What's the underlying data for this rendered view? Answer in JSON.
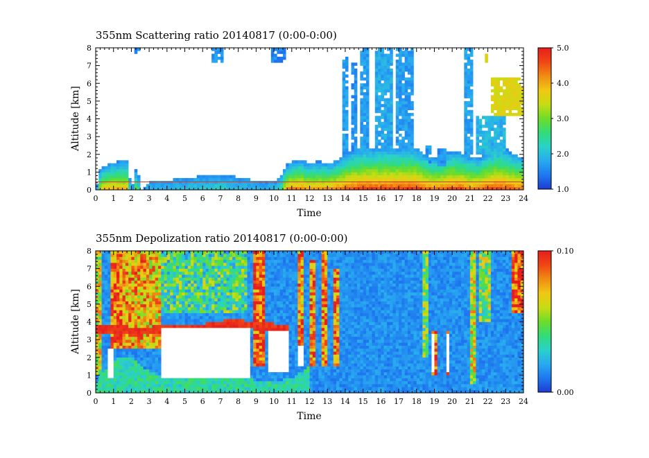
{
  "colorscale": {
    "stops": [
      "#1e3cd2",
      "#1e78f0",
      "#28aaf0",
      "#2ad2c8",
      "#32dc78",
      "#6edc28",
      "#c8dc14",
      "#f0c814",
      "#f08c14",
      "#f04614",
      "#e61e1e"
    ]
  },
  "chart_data": [
    {
      "type": "heatmap",
      "title": "355nm Scattering ratio  20140817 (0:00-0:00)",
      "xlabel": "Time",
      "ylabel": "Altitude [km]",
      "xlim": [
        0,
        24
      ],
      "ylim": [
        0,
        8
      ],
      "xticks": [
        "0",
        "1",
        "2",
        "3",
        "4",
        "5",
        "6",
        "7",
        "8",
        "9",
        "10",
        "11",
        "12",
        "13",
        "14",
        "15",
        "16",
        "17",
        "18",
        "19",
        "20",
        "21",
        "22",
        "23",
        "24"
      ],
      "yticks": [
        "0",
        "1",
        "2",
        "3",
        "4",
        "5",
        "6",
        "7",
        "8"
      ],
      "colorbar": {
        "range": [
          1.0,
          5.0
        ],
        "ticks": [
          "1.0",
          "2.0",
          "3.0",
          "4.0",
          "5.0"
        ]
      },
      "grid": false,
      "surface_line_km": 0.45,
      "profile_x": [
        0,
        0.3,
        0.8,
        1.3,
        1.8,
        2.0,
        2.3,
        2.6,
        3.0,
        4.0,
        5.0,
        6.0,
        7.0,
        8.0,
        9.0,
        9.5,
        10.0,
        10.3,
        10.7,
        11.0,
        11.5,
        12.0,
        12.5,
        13.0,
        13.5,
        14.0,
        14.5,
        15.0,
        15.5,
        16.0,
        16.5,
        17.0,
        17.5,
        18.0,
        18.5,
        19.0,
        19.5,
        20.0,
        20.5,
        21.0,
        21.5,
        22.0,
        22.5,
        23.0,
        23.5,
        24.0
      ],
      "profile_top_km": [
        0,
        1.3,
        1.5,
        1.6,
        1.6,
        0,
        1.3,
        0,
        0.45,
        0.55,
        0.65,
        0.8,
        0.9,
        0.7,
        0.5,
        0.45,
        0.5,
        0.7,
        1.4,
        1.6,
        1.7,
        1.5,
        1.6,
        1.5,
        1.6,
        2.0,
        2.3,
        2.4,
        2.4,
        2.4,
        2.4,
        2.4,
        2.4,
        2.4,
        2.0,
        1.8,
        2.0,
        2.2,
        2.1,
        1.9,
        1.8,
        2.2,
        2.4,
        2.3,
        2.0,
        1.8
      ],
      "profile_peak_sr": [
        1.0,
        4.0,
        4.2,
        4.3,
        4.2,
        1.0,
        3.5,
        1.0,
        2.0,
        2.0,
        2.2,
        2.2,
        2.3,
        2.1,
        2.0,
        2.0,
        2.0,
        2.2,
        4.5,
        4.6,
        4.6,
        4.4,
        4.5,
        4.5,
        4.7,
        4.8,
        4.9,
        5.0,
        5.0,
        5.0,
        5.0,
        5.0,
        5.0,
        5.0,
        4.8,
        4.7,
        4.8,
        4.9,
        4.9,
        4.6,
        4.7,
        4.9,
        5.0,
        4.9,
        4.8,
        4.7
      ],
      "upper_plumes": [
        {
          "x": [
            2.1,
            2.5
          ],
          "ylim": [
            7.6,
            8.0
          ],
          "sr": 1.5
        },
        {
          "x": [
            6.5,
            7.2
          ],
          "ylim": [
            7.1,
            8.0
          ],
          "sr": 1.6
        },
        {
          "x": [
            9.9,
            10.6
          ],
          "ylim": [
            7.2,
            8.0
          ],
          "sr": 1.5
        },
        {
          "x": [
            13.8,
            14.1
          ],
          "ylim": [
            2.0,
            7.5
          ],
          "sr": 1.7
        },
        {
          "x": [
            14.4,
            14.7
          ],
          "ylim": [
            2.2,
            7.2
          ],
          "sr": 1.6
        },
        {
          "x": [
            14.9,
            15.4
          ],
          "ylim": [
            2.0,
            8.0
          ],
          "sr": 1.7
        },
        {
          "x": [
            15.7,
            16.6
          ],
          "ylim": [
            2.2,
            8.0
          ],
          "sr": 1.8
        },
        {
          "x": [
            16.8,
            17.9
          ],
          "ylim": [
            2.3,
            8.0
          ],
          "sr": 1.7
        },
        {
          "x": [
            18.5,
            18.8
          ],
          "ylim": [
            1.5,
            2.5
          ],
          "sr": 1.6
        },
        {
          "x": [
            19.2,
            19.6
          ],
          "ylim": [
            1.3,
            2.3
          ],
          "sr": 1.6
        },
        {
          "x": [
            20.7,
            21.1
          ],
          "ylim": [
            2.0,
            8.0
          ],
          "sr": 1.7
        },
        {
          "x": [
            21.4,
            23.0
          ],
          "ylim": [
            2.0,
            4.2
          ],
          "sr": 1.9
        },
        {
          "x": [
            22.1,
            24.0
          ],
          "ylim": [
            4.2,
            6.3
          ],
          "sr": 3.6
        },
        {
          "x": [
            21.8,
            22.0
          ],
          "ylim": [
            7.2,
            7.6
          ],
          "sr": 3.5
        }
      ]
    },
    {
      "type": "heatmap",
      "title": "355nm Depolization ratio  20140817 (0:00-0:00)",
      "xlabel": "Time",
      "ylabel": "Altitude [km]",
      "xlim": [
        0,
        24
      ],
      "ylim": [
        0,
        8
      ],
      "xticks": [
        "0",
        "1",
        "2",
        "3",
        "4",
        "5",
        "6",
        "7",
        "8",
        "9",
        "10",
        "11",
        "12",
        "13",
        "14",
        "15",
        "16",
        "17",
        "18",
        "19",
        "20",
        "21",
        "22",
        "23",
        "24"
      ],
      "yticks": [
        "0",
        "1",
        "2",
        "3",
        "4",
        "5",
        "6",
        "7",
        "8"
      ],
      "colorbar": {
        "range": [
          0.0,
          0.1
        ],
        "ticks": [
          "0.00",
          "0.10"
        ]
      },
      "grid": false,
      "background_dr": 0.015,
      "noisy_columns": [
        {
          "x": [
            0.0,
            0.4
          ],
          "ylim": [
            1.0,
            8.0
          ],
          "dr": 0.06
        },
        {
          "x": [
            0.8,
            1.5
          ],
          "ylim": [
            2.5,
            8.0
          ],
          "dr": 0.085
        },
        {
          "x": [
            1.5,
            2.8
          ],
          "ylim": [
            2.5,
            8.0
          ],
          "dr": 0.075
        },
        {
          "x": [
            2.8,
            3.7
          ],
          "ylim": [
            2.5,
            8.0
          ],
          "dr": 0.07
        },
        {
          "x": [
            3.7,
            8.5
          ],
          "ylim": [
            4.5,
            8.0
          ],
          "dr": 0.04
        },
        {
          "x": [
            8.9,
            9.5
          ],
          "ylim": [
            1.5,
            8.0
          ],
          "dr": 0.09
        },
        {
          "x": [
            11.3,
            11.6
          ],
          "ylim": [
            2.5,
            8.0
          ],
          "dr": 0.08
        },
        {
          "x": [
            12.0,
            12.4
          ],
          "ylim": [
            1.5,
            7.5
          ],
          "dr": 0.08
        },
        {
          "x": [
            12.6,
            13.0
          ],
          "ylim": [
            1.5,
            8.0
          ],
          "dr": 0.08
        },
        {
          "x": [
            13.4,
            13.7
          ],
          "ylim": [
            1.5,
            7.0
          ],
          "dr": 0.08
        },
        {
          "x": [
            18.3,
            18.6
          ],
          "ylim": [
            2.0,
            8.0
          ],
          "dr": 0.05
        },
        {
          "x": [
            18.8,
            19.1
          ],
          "ylim": [
            1.0,
            3.5
          ],
          "dr": 0.09
        },
        {
          "x": [
            19.6,
            19.9
          ],
          "ylim": [
            1.0,
            3.5
          ],
          "dr": 0.09
        },
        {
          "x": [
            21.0,
            21.3
          ],
          "ylim": [
            0.5,
            8.0
          ],
          "dr": 0.06
        },
        {
          "x": [
            21.5,
            22.2
          ],
          "ylim": [
            4.0,
            8.0
          ],
          "dr": 0.05
        },
        {
          "x": [
            23.3,
            24.0
          ],
          "ylim": [
            4.5,
            8.0
          ],
          "dr": 0.09
        }
      ],
      "high_dr_band": {
        "x": [
          0.0,
          10.8
        ],
        "base_km": [
          3.5,
          3.5,
          3.3,
          3.4,
          3.5,
          3.5,
          3.6,
          3.8,
          3.7,
          3.6,
          3.5
        ],
        "thickness_km": 0.35,
        "dr": 0.1
      },
      "masked_regions": [
        {
          "x": [
            3.7,
            8.7
          ],
          "ylim": [
            0.9,
            3.6
          ]
        },
        {
          "x": [
            0.6,
            1.0
          ],
          "ylim": [
            0.8,
            2.5
          ]
        },
        {
          "x": [
            9.6,
            10.8
          ],
          "ylim": [
            1.2,
            3.5
          ]
        },
        {
          "x": [
            11.4,
            11.6
          ],
          "ylim": [
            1.5,
            2.6
          ]
        },
        {
          "x": [
            18.9,
            19.0
          ],
          "ylim": [
            1.2,
            3.3
          ]
        },
        {
          "x": [
            19.7,
            19.8
          ],
          "ylim": [
            1.2,
            3.3
          ]
        }
      ],
      "low_layer": {
        "x": [
          0.0,
          12.0
        ],
        "top_km": [
          0.6,
          1.9,
          2.0,
          1.2,
          0.9,
          0.8,
          0.8,
          1.0,
          0.9,
          0.7,
          0.7,
          0.8,
          1.5
        ],
        "dr": 0.035
      }
    }
  ]
}
